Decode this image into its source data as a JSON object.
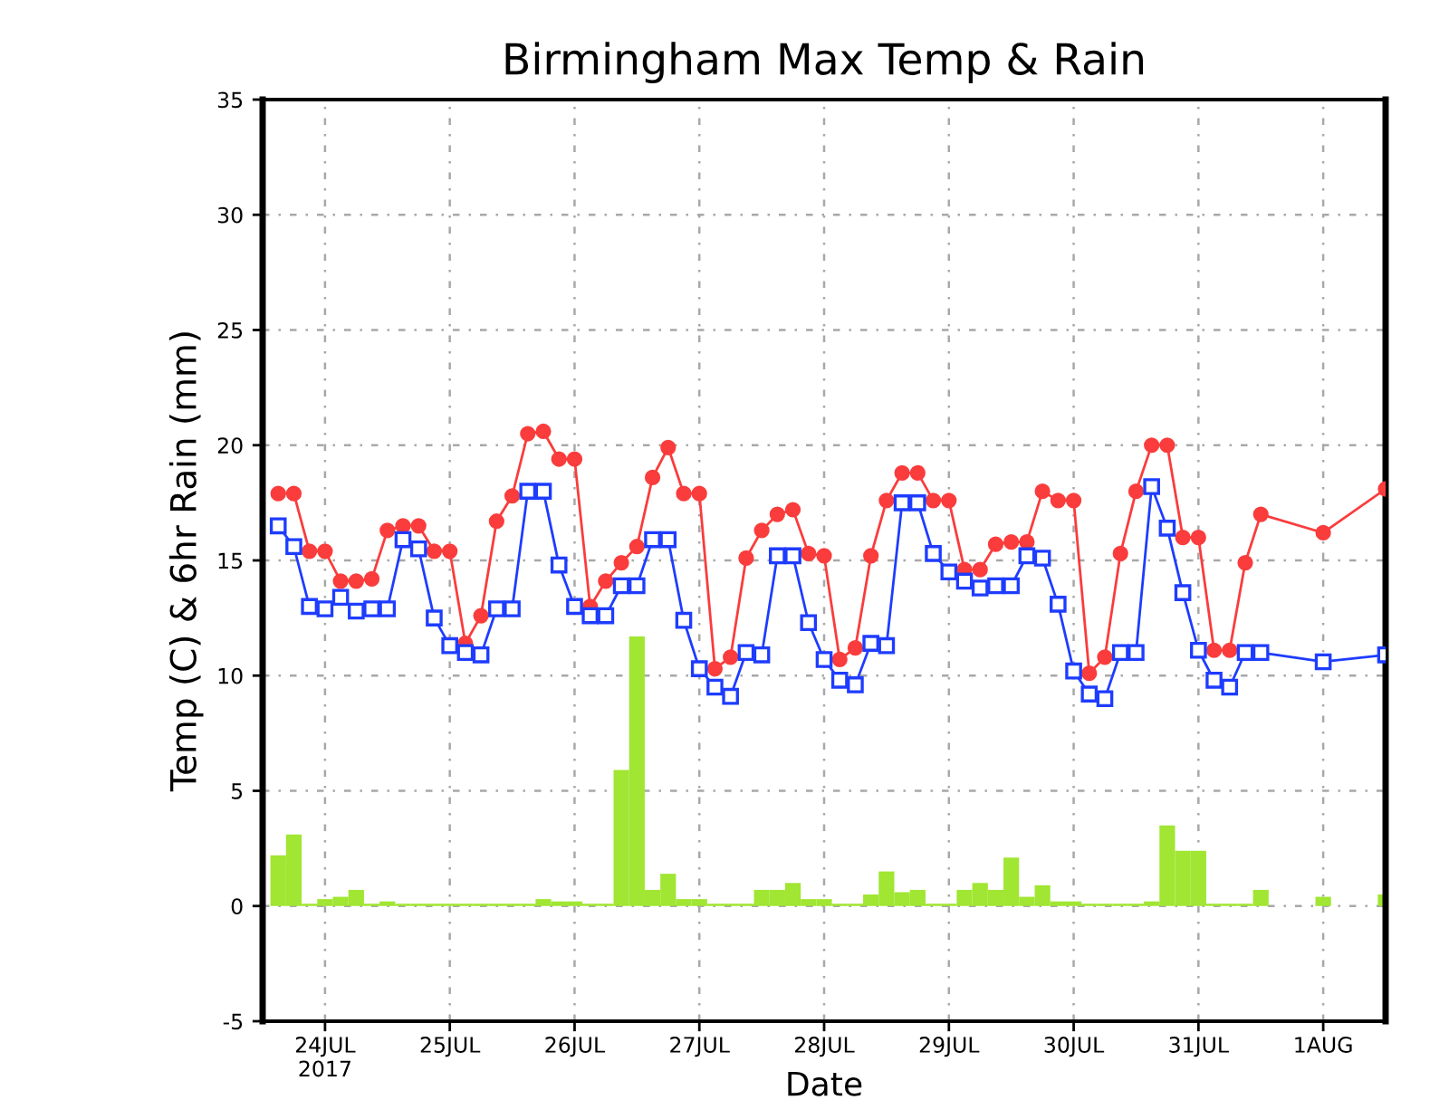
{
  "chart_data": {
    "type": "line",
    "title": "Birmingham Max Temp & Rain",
    "xlabel": "Date",
    "ylabel": "Temp (C) & 6hr Rain (mm)",
    "x": [
      "2017-07-23T15:00",
      "2017-07-23T18:00",
      "2017-07-23T21:00",
      "2017-07-24T00:00",
      "2017-07-24T03:00",
      "2017-07-24T06:00",
      "2017-07-24T09:00",
      "2017-07-24T12:00",
      "2017-07-24T15:00",
      "2017-07-24T18:00",
      "2017-07-24T21:00",
      "2017-07-25T00:00",
      "2017-07-25T03:00",
      "2017-07-25T06:00",
      "2017-07-25T09:00",
      "2017-07-25T12:00",
      "2017-07-25T15:00",
      "2017-07-25T18:00",
      "2017-07-25T21:00",
      "2017-07-26T00:00",
      "2017-07-26T03:00",
      "2017-07-26T06:00",
      "2017-07-26T09:00",
      "2017-07-26T12:00",
      "2017-07-26T15:00",
      "2017-07-26T18:00",
      "2017-07-26T21:00",
      "2017-07-27T00:00",
      "2017-07-27T03:00",
      "2017-07-27T06:00",
      "2017-07-27T09:00",
      "2017-07-27T12:00",
      "2017-07-27T15:00",
      "2017-07-27T18:00",
      "2017-07-27T21:00",
      "2017-07-28T00:00",
      "2017-07-28T03:00",
      "2017-07-28T06:00",
      "2017-07-28T09:00",
      "2017-07-28T12:00",
      "2017-07-28T15:00",
      "2017-07-28T18:00",
      "2017-07-28T21:00",
      "2017-07-29T00:00",
      "2017-07-29T03:00",
      "2017-07-29T06:00",
      "2017-07-29T09:00",
      "2017-07-29T12:00",
      "2017-07-29T15:00",
      "2017-07-29T18:00",
      "2017-07-29T21:00",
      "2017-07-30T00:00",
      "2017-07-30T03:00",
      "2017-07-30T06:00",
      "2017-07-30T09:00",
      "2017-07-30T12:00",
      "2017-07-30T15:00",
      "2017-07-30T18:00",
      "2017-07-30T21:00",
      "2017-07-31T00:00",
      "2017-07-31T03:00",
      "2017-07-31T06:00",
      "2017-07-31T09:00",
      "2017-07-31T12:00",
      "2017-08-01T00:00",
      "2017-08-01T12:00"
    ],
    "xlim": [
      "2017-07-23T12:00",
      "2017-08-01T12:00"
    ],
    "xticks": [
      {
        "value": "2017-07-24",
        "label": "24JUL\n2017"
      },
      {
        "value": "2017-07-25",
        "label": "25JUL"
      },
      {
        "value": "2017-07-26",
        "label": "26JUL"
      },
      {
        "value": "2017-07-27",
        "label": "27JUL"
      },
      {
        "value": "2017-07-28",
        "label": "28JUL"
      },
      {
        "value": "2017-07-29",
        "label": "29JUL"
      },
      {
        "value": "2017-07-30",
        "label": "30JUL"
      },
      {
        "value": "2017-07-31",
        "label": "31JUL"
      },
      {
        "value": "2017-08-01",
        "label": "1AUG"
      }
    ],
    "ylim": [
      -5,
      35
    ],
    "yticks": [
      -5,
      0,
      5,
      10,
      15,
      20,
      25,
      30,
      35
    ],
    "grid": true,
    "series": [
      {
        "type": "bar",
        "color": "#a0e632",
        "values": [
          2.2,
          3.1,
          0.1,
          0.3,
          0.4,
          0.7,
          0.1,
          0.2,
          0.1,
          0.1,
          0.1,
          0.1,
          0.1,
          0.1,
          0.1,
          0.1,
          0.1,
          0.3,
          0.2,
          0.2,
          0.1,
          0.1,
          5.9,
          11.7,
          0.7,
          1.4,
          0.3,
          0.3,
          0.1,
          0.1,
          0.1,
          0.7,
          0.7,
          1.0,
          0.3,
          0.3,
          0.1,
          0.1,
          0.5,
          1.5,
          0.6,
          0.7,
          0.1,
          0.1,
          0.7,
          1.0,
          0.7,
          2.1,
          0.4,
          0.9,
          0.2,
          0.2,
          0.1,
          0.1,
          0.1,
          0.1,
          0.2,
          3.5,
          2.4,
          2.4,
          0.1,
          0.1,
          0.1,
          0.7,
          0.4,
          0.5
        ]
      },
      {
        "color": "#fa3c3c",
        "marker": "circle",
        "line_style": "solid",
        "values": [
          17.9,
          17.9,
          15.4,
          15.4,
          14.1,
          14.1,
          14.2,
          16.3,
          16.5,
          16.5,
          15.4,
          15.4,
          11.4,
          12.6,
          16.7,
          17.8,
          20.5,
          20.6,
          19.4,
          19.4,
          13.0,
          14.1,
          14.9,
          15.6,
          18.6,
          19.9,
          17.9,
          17.9,
          10.3,
          10.8,
          15.1,
          16.3,
          17.0,
          17.2,
          15.3,
          15.2,
          10.7,
          11.2,
          15.2,
          17.6,
          18.8,
          18.8,
          17.6,
          17.6,
          14.6,
          14.6,
          15.7,
          15.8,
          15.8,
          18.0,
          17.6,
          17.6,
          10.1,
          10.8,
          15.3,
          18.0,
          20.0,
          20.0,
          16.0,
          16.0,
          11.1,
          11.1,
          14.9,
          17.0,
          16.2,
          18.1
        ]
      },
      {
        "color": "#1e3cff",
        "marker": "square",
        "line_style": "solid",
        "values": [
          16.5,
          15.6,
          13.0,
          12.9,
          13.4,
          12.8,
          12.9,
          12.9,
          15.9,
          15.5,
          12.5,
          11.3,
          11.0,
          10.9,
          12.9,
          12.9,
          18.0,
          18.0,
          14.8,
          13.0,
          12.6,
          12.6,
          13.9,
          13.9,
          15.9,
          15.9,
          12.4,
          10.3,
          9.5,
          9.1,
          11.0,
          10.9,
          15.2,
          15.2,
          12.3,
          10.7,
          9.8,
          9.6,
          11.4,
          11.3,
          17.5,
          17.5,
          15.3,
          14.5,
          14.1,
          13.8,
          13.9,
          13.9,
          15.2,
          15.1,
          13.1,
          10.2,
          9.2,
          9.0,
          11.0,
          11.0,
          18.2,
          16.4,
          13.6,
          11.1,
          9.8,
          9.5,
          11.0,
          11.0,
          10.6,
          10.9
        ]
      }
    ]
  }
}
